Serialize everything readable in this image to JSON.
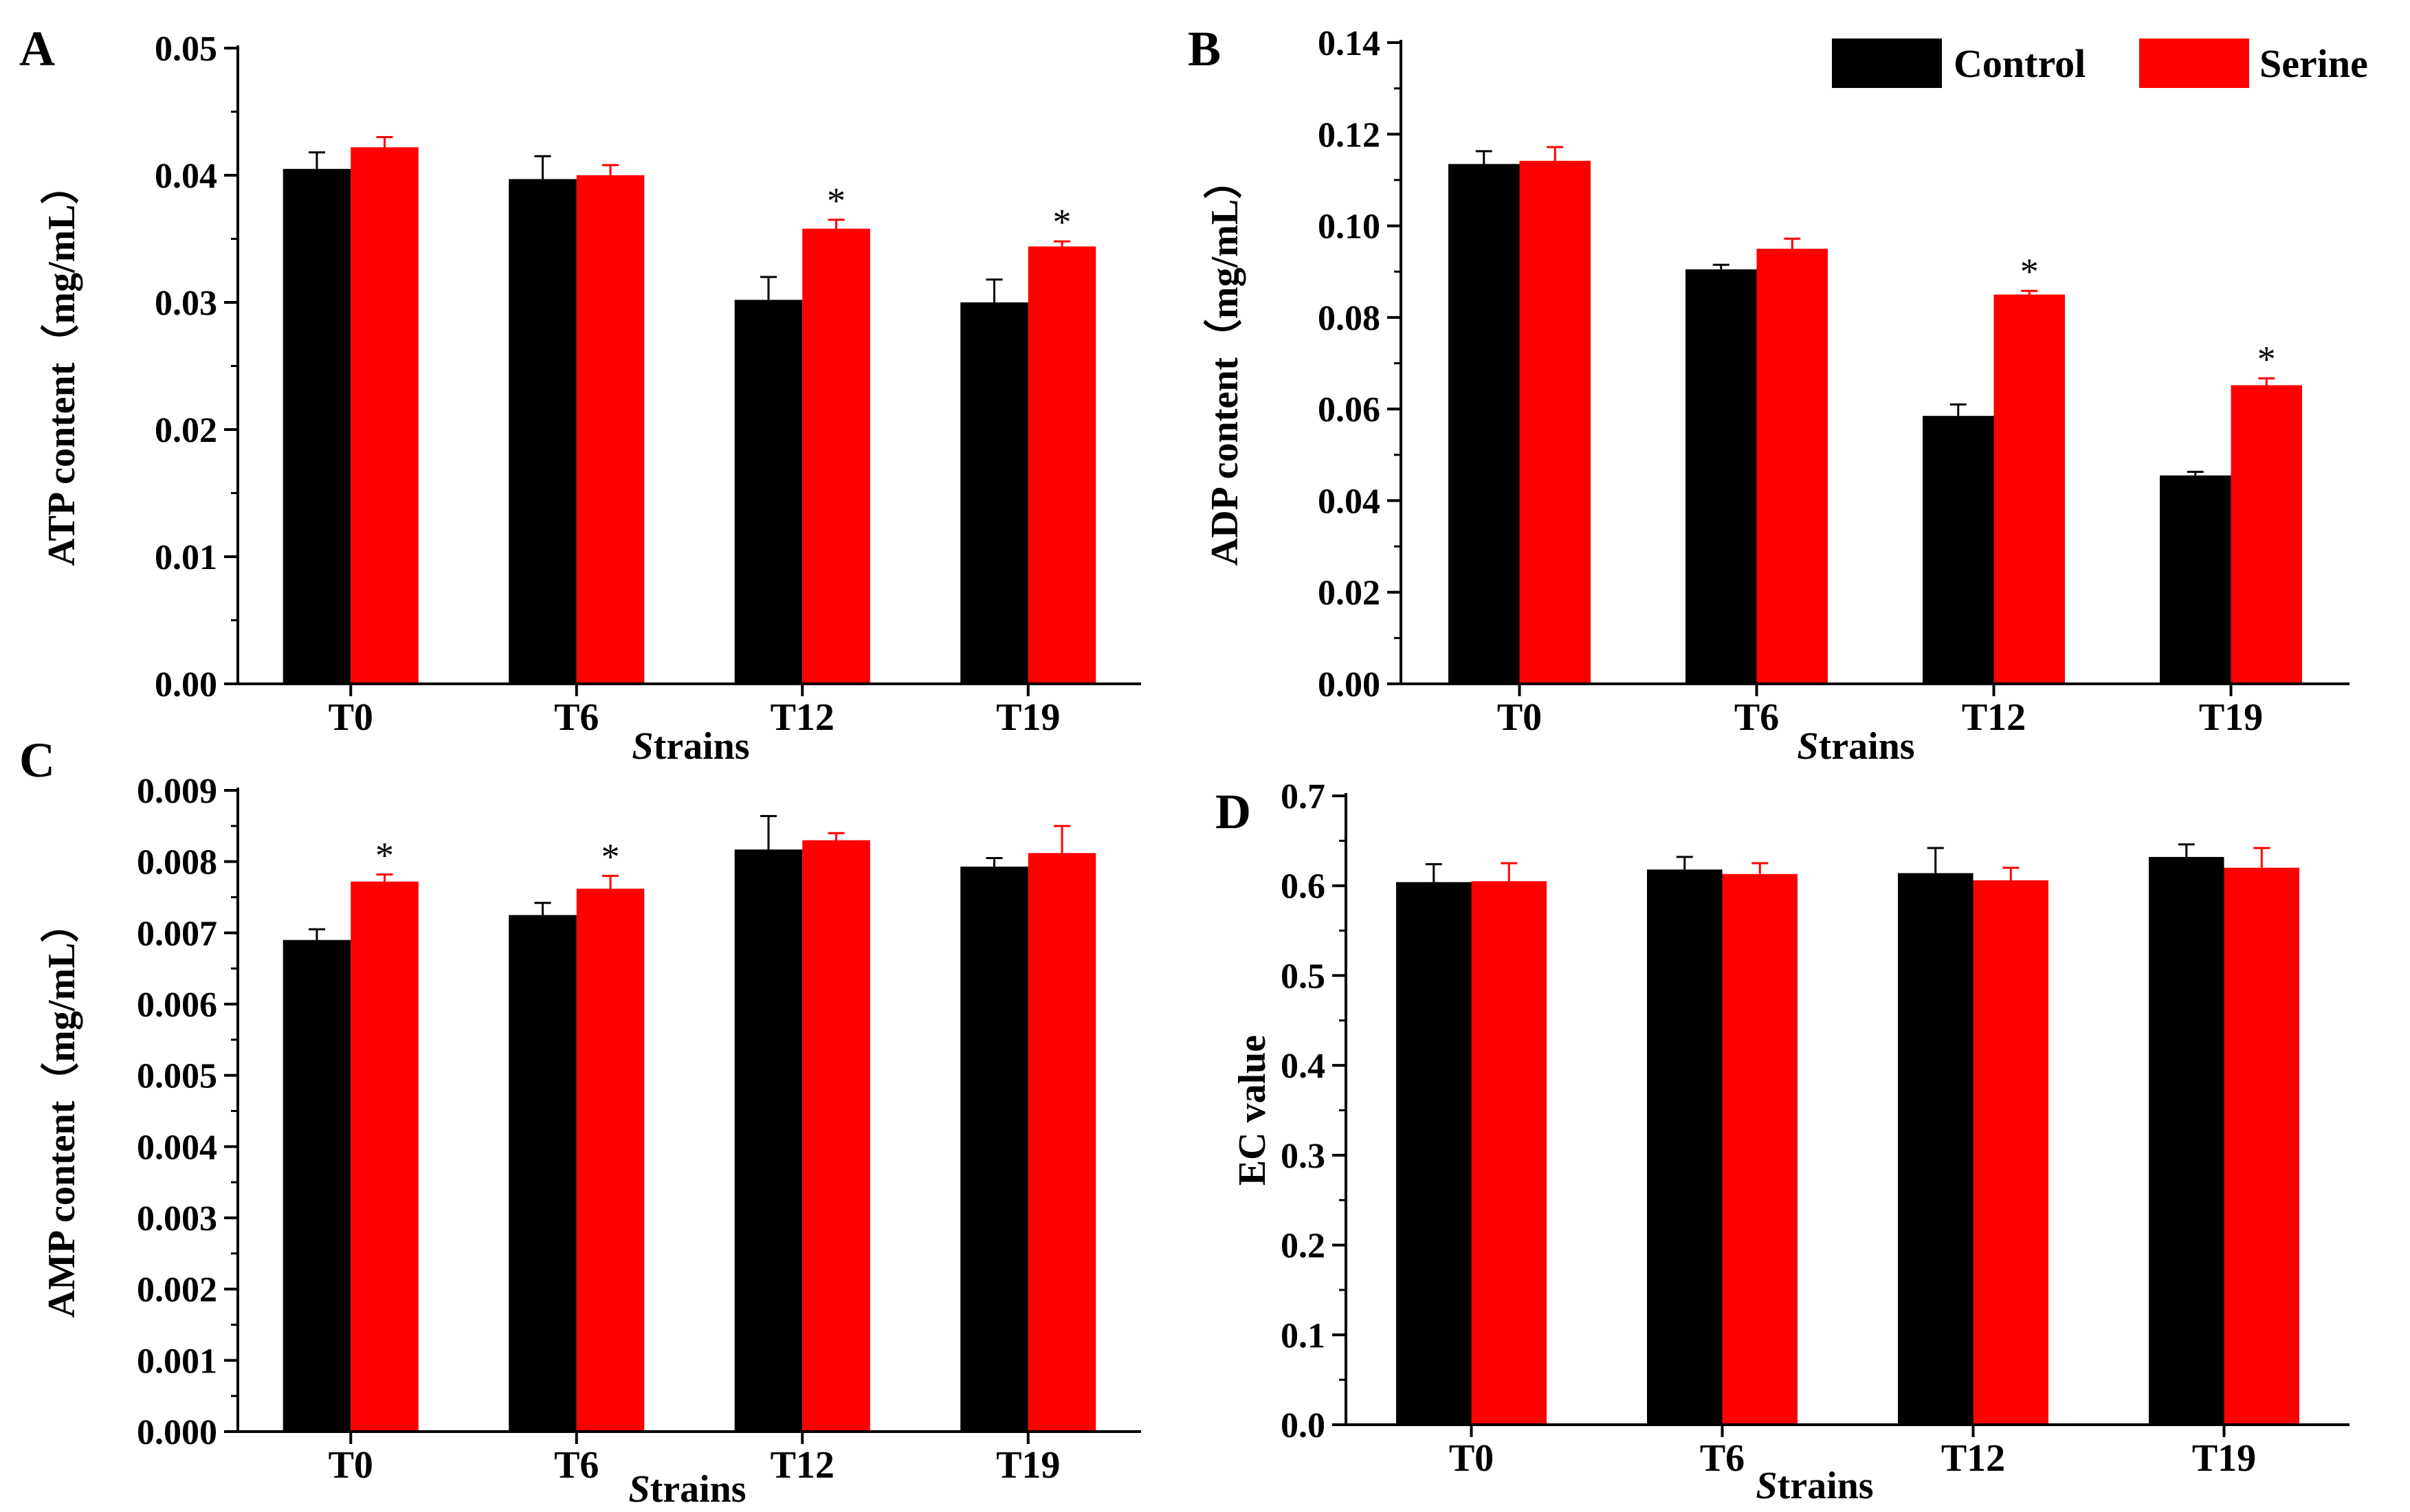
{
  "legend": {
    "position": "top-right",
    "entries": [
      {
        "name": "Control",
        "color": "#000000"
      },
      {
        "name": "Serine",
        "color": "#ff0000"
      }
    ]
  },
  "chart_data": [
    {
      "panel": "A",
      "type": "bar",
      "categories": [
        "T0",
        "T6",
        "T12",
        "T19"
      ],
      "xlabel": "Strains",
      "ylabel": "ATP content（mg/mL）",
      "ylim": [
        0,
        0.05
      ],
      "yticks": [
        "0.00",
        "0.01",
        "0.02",
        "0.03",
        "0.04",
        "0.05"
      ],
      "series": [
        {
          "name": "Control",
          "color": "#000000",
          "values": [
            0.0405,
            0.0397,
            0.0302,
            0.03
          ],
          "errors": [
            0.0013,
            0.0018,
            0.0018,
            0.0018
          ]
        },
        {
          "name": "Serine",
          "color": "#ff0000",
          "values": [
            0.0422,
            0.04,
            0.0358,
            0.0344
          ],
          "errors": [
            0.0008,
            0.0008,
            0.0007,
            0.0004
          ]
        }
      ],
      "annotations": [
        {
          "category": "T12",
          "series": "Serine",
          "text": "*"
        },
        {
          "category": "T19",
          "series": "Serine",
          "text": "*"
        }
      ]
    },
    {
      "panel": "B",
      "type": "bar",
      "categories": [
        "T0",
        "T6",
        "T12",
        "T19"
      ],
      "xlabel": "Strains",
      "ylabel": "ADP content（mg/mL）",
      "ylim": [
        0,
        0.14
      ],
      "yticks": [
        "0.00",
        "0.02",
        "0.04",
        "0.06",
        "0.08",
        "0.10",
        "0.12",
        "0.14"
      ],
      "series": [
        {
          "name": "Control",
          "color": "#000000",
          "values": [
            0.1135,
            0.0905,
            0.0585,
            0.0455
          ],
          "errors": [
            0.0028,
            0.001,
            0.0025,
            0.0008
          ]
        },
        {
          "name": "Serine",
          "color": "#ff0000",
          "values": [
            0.1142,
            0.095,
            0.085,
            0.0652
          ],
          "errors": [
            0.003,
            0.0022,
            0.0008,
            0.0015
          ]
        }
      ],
      "annotations": [
        {
          "category": "T12",
          "series": "Serine",
          "text": "*"
        },
        {
          "category": "T19",
          "series": "Serine",
          "text": "*"
        }
      ]
    },
    {
      "panel": "C",
      "type": "bar",
      "categories": [
        "T0",
        "T6",
        "T12",
        "T19"
      ],
      "xlabel": "Strains",
      "ylabel": "AMP content（mg/mL）",
      "ylim": [
        0,
        0.009
      ],
      "yticks": [
        "0.000",
        "0.001",
        "0.002",
        "0.003",
        "0.004",
        "0.005",
        "0.006",
        "0.007",
        "0.008",
        "0.009"
      ],
      "series": [
        {
          "name": "Control",
          "color": "#000000",
          "values": [
            0.0069,
            0.00725,
            0.00817,
            0.00793
          ],
          "errors": [
            0.00015,
            0.00017,
            0.00047,
            0.00012
          ]
        },
        {
          "name": "Serine",
          "color": "#ff0000",
          "values": [
            0.00772,
            0.00762,
            0.0083,
            0.00812
          ],
          "errors": [
            0.0001,
            0.00018,
            0.0001,
            0.00038
          ]
        }
      ],
      "annotations": [
        {
          "category": "T0",
          "series": "Serine",
          "text": "*"
        },
        {
          "category": "T6",
          "series": "Serine",
          "text": "*"
        }
      ]
    },
    {
      "panel": "D",
      "type": "bar",
      "categories": [
        "T0",
        "T6",
        "T12",
        "T19"
      ],
      "xlabel": "Strains",
      "ylabel": "EC value",
      "ylim": [
        0,
        0.7
      ],
      "yticks": [
        "0.0",
        "0.1",
        "0.2",
        "0.3",
        "0.4",
        "0.5",
        "0.6",
        "0.7"
      ],
      "series": [
        {
          "name": "Control",
          "color": "#000000",
          "values": [
            0.604,
            0.618,
            0.614,
            0.632
          ],
          "errors": [
            0.02,
            0.014,
            0.028,
            0.014
          ]
        },
        {
          "name": "Serine",
          "color": "#ff0000",
          "values": [
            0.605,
            0.613,
            0.606,
            0.62
          ],
          "errors": [
            0.02,
            0.012,
            0.014,
            0.022
          ]
        }
      ],
      "annotations": []
    }
  ]
}
